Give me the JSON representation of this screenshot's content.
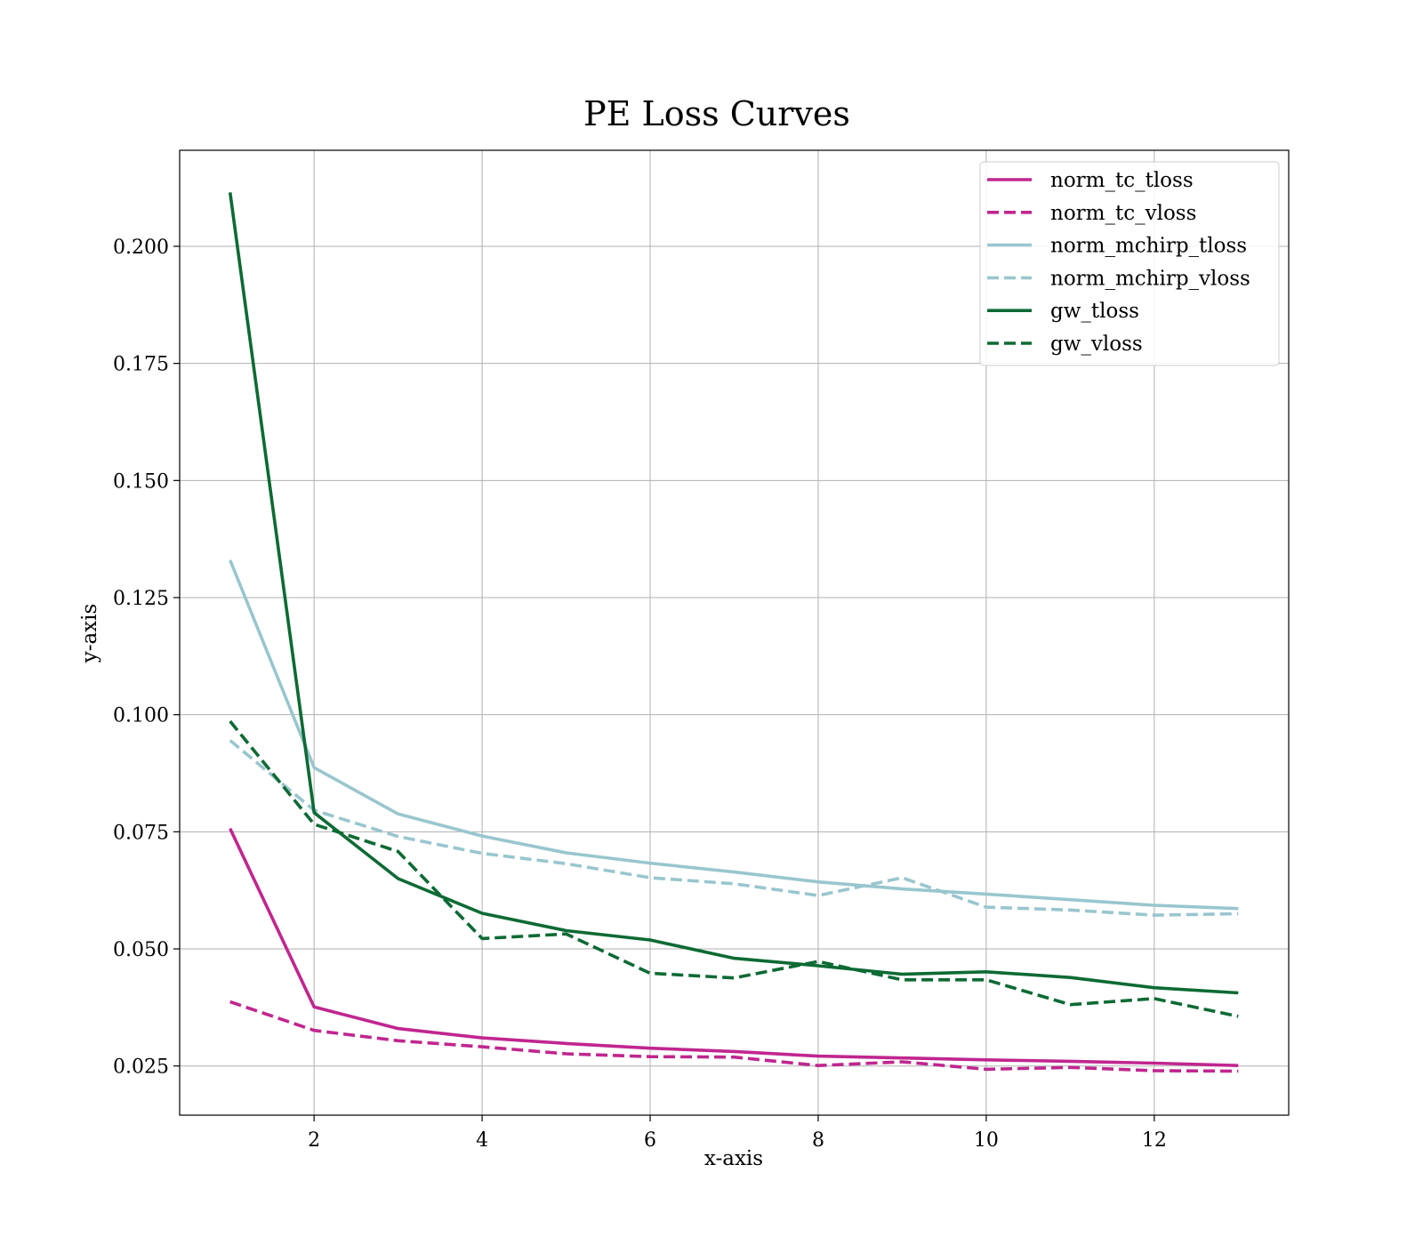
{
  "chart_data": {
    "type": "line",
    "title": "PE Loss Curves",
    "xlabel": "x-axis",
    "ylabel": "y-axis",
    "xlim": [
      0.4,
      13.6
    ],
    "ylim": [
      0.0145,
      0.2205
    ],
    "xticks": [
      2,
      4,
      6,
      8,
      10,
      12
    ],
    "yticks": [
      0.025,
      0.05,
      0.075,
      0.1,
      0.125,
      0.15,
      0.175,
      0.2
    ],
    "ytick_labels": [
      "0.025",
      "0.050",
      "0.075",
      "0.100",
      "0.125",
      "0.150",
      "0.175",
      "0.200"
    ],
    "grid": true,
    "legend_position": "top-right",
    "x": [
      1,
      2,
      3,
      4,
      5,
      6,
      7,
      8,
      9,
      10,
      11,
      12,
      13
    ],
    "series": [
      {
        "name": "norm_tc_tloss",
        "color": "#c0268f",
        "dashed": false,
        "values": [
          0.0757,
          0.0376,
          0.033,
          0.031,
          0.0298,
          0.0288,
          0.0281,
          0.0271,
          0.0267,
          0.0263,
          0.026,
          0.0256,
          0.0251
        ]
      },
      {
        "name": "norm_tc_vloss",
        "color": "#c0268f",
        "dashed": true,
        "values": [
          0.0387,
          0.0326,
          0.0304,
          0.0291,
          0.0276,
          0.027,
          0.0269,
          0.0251,
          0.0259,
          0.0243,
          0.0247,
          0.024,
          0.0239
        ]
      },
      {
        "name": "norm_mchirp_tloss",
        "color": "#99c6ce",
        "dashed": false,
        "values": [
          0.133,
          0.0887,
          0.0788,
          0.0741,
          0.0705,
          0.0683,
          0.0664,
          0.0643,
          0.0628,
          0.0617,
          0.0605,
          0.0593,
          0.0586
        ]
      },
      {
        "name": "norm_mchirp_vloss",
        "color": "#99c6ce",
        "dashed": true,
        "values": [
          0.0945,
          0.0796,
          0.074,
          0.0704,
          0.0682,
          0.0652,
          0.0639,
          0.0614,
          0.0652,
          0.0589,
          0.0583,
          0.0572,
          0.0575
        ]
      },
      {
        "name": "gw_tloss",
        "color": "#0d6a34",
        "dashed": false,
        "values": [
          0.2115,
          0.0791,
          0.065,
          0.0576,
          0.0539,
          0.0519,
          0.048,
          0.0464,
          0.0446,
          0.0451,
          0.0439,
          0.0417,
          0.0406
        ]
      },
      {
        "name": "gw_vloss",
        "color": "#0d6a34",
        "dashed": true,
        "values": [
          0.0986,
          0.0766,
          0.0708,
          0.0522,
          0.0532,
          0.0448,
          0.0438,
          0.0473,
          0.0434,
          0.0434,
          0.0381,
          0.0394,
          0.0356
        ]
      }
    ]
  }
}
